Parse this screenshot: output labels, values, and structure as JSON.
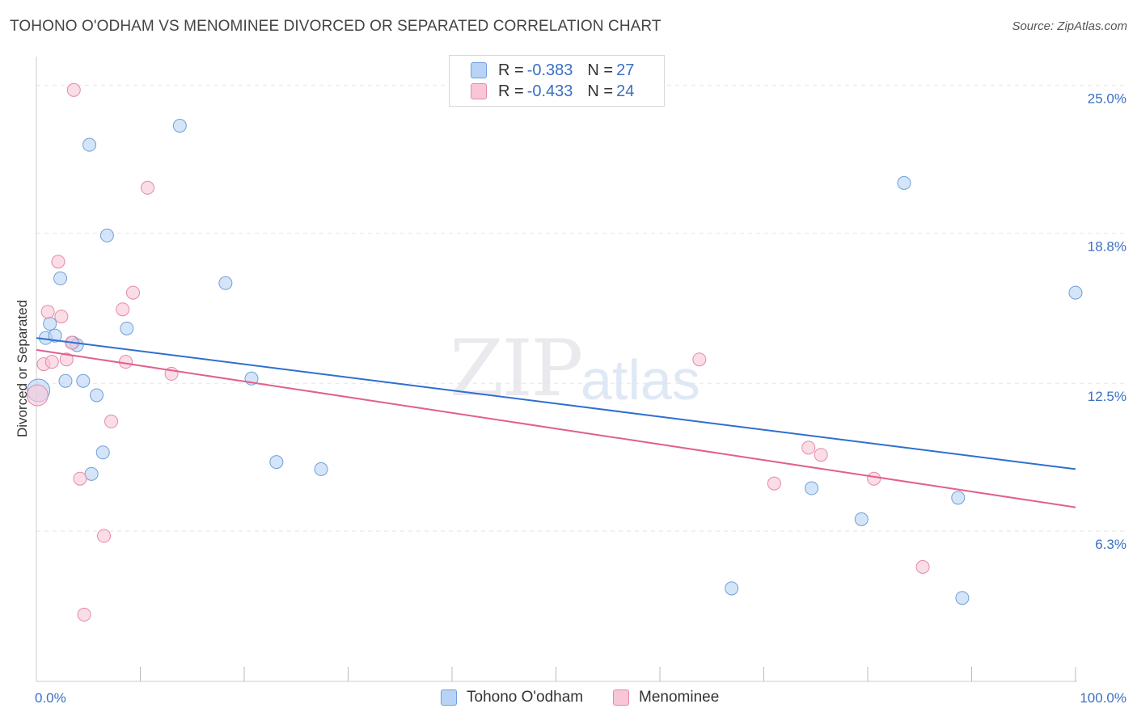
{
  "title": "TOHONO O'ODHAM VS MENOMINEE DIVORCED OR SEPARATED CORRELATION CHART",
  "source": "Source: ZipAtlas.com",
  "watermark": {
    "zip": "ZIP",
    "atlas": "atlas"
  },
  "legend": {
    "series1": {
      "r_label": "R =",
      "r_value": "-0.383",
      "n_label": "N =",
      "n_value": "27"
    },
    "series2": {
      "r_label": "R =",
      "r_value": "-0.433",
      "n_label": "N =",
      "n_value": "24"
    }
  },
  "bottom_legend": {
    "series1": "Tohono O'odham",
    "series2": "Menominee"
  },
  "colors": {
    "blue_fill": "#b8d3f5",
    "blue_stroke": "#6f9fd8",
    "blue_line": "#2f6fcf",
    "pink_fill": "#f9c6d6",
    "pink_stroke": "#e38aa8",
    "pink_line": "#e0608f",
    "tick_label": "#3a6fc4",
    "grid": "#e5e5e5"
  },
  "chart_data": {
    "type": "scatter",
    "title": "TOHONO O'ODHAM VS MENOMINEE DIVORCED OR SEPARATED CORRELATION CHART",
    "xlabel": "",
    "ylabel": "Divorced or Separated",
    "xlim": [
      0,
      100
    ],
    "ylim": [
      0,
      26.2
    ],
    "x_tick_labels": [
      "0.0%",
      "100.0%"
    ],
    "y_ticks": [
      6.3,
      12.5,
      18.8,
      25.0
    ],
    "y_tick_labels": [
      "6.3%",
      "12.5%",
      "18.8%",
      "25.0%"
    ],
    "grid": true,
    "legend_position": "top-center",
    "series": [
      {
        "name": "Tohono O'odham",
        "color": "#b8d3f5",
        "points": [
          [
            0.2,
            12.2
          ],
          [
            0.9,
            14.4
          ],
          [
            1.3,
            15.0
          ],
          [
            1.8,
            14.5
          ],
          [
            2.3,
            16.9
          ],
          [
            2.8,
            12.6
          ],
          [
            3.5,
            14.2
          ],
          [
            3.9,
            14.1
          ],
          [
            4.5,
            12.6
          ],
          [
            5.1,
            22.5
          ],
          [
            5.3,
            8.7
          ],
          [
            5.8,
            12.0
          ],
          [
            6.4,
            9.6
          ],
          [
            6.8,
            18.7
          ],
          [
            8.7,
            14.8
          ],
          [
            13.8,
            23.3
          ],
          [
            18.2,
            16.7
          ],
          [
            20.7,
            12.7
          ],
          [
            23.1,
            9.2
          ],
          [
            27.4,
            8.9
          ],
          [
            66.9,
            3.9
          ],
          [
            74.6,
            8.1
          ],
          [
            79.4,
            6.8
          ],
          [
            83.5,
            20.9
          ],
          [
            88.7,
            7.7
          ],
          [
            89.1,
            3.5
          ],
          [
            100.0,
            16.3
          ]
        ]
      },
      {
        "name": "Menominee",
        "color": "#f9c6d6",
        "points": [
          [
            0.1,
            12.0
          ],
          [
            0.7,
            13.3
          ],
          [
            1.1,
            15.5
          ],
          [
            1.5,
            13.4
          ],
          [
            2.1,
            17.6
          ],
          [
            2.4,
            15.3
          ],
          [
            2.9,
            13.5
          ],
          [
            3.4,
            14.2
          ],
          [
            3.6,
            24.8
          ],
          [
            4.2,
            8.5
          ],
          [
            4.6,
            2.8
          ],
          [
            6.5,
            6.1
          ],
          [
            7.2,
            10.9
          ],
          [
            8.3,
            15.6
          ],
          [
            8.6,
            13.4
          ],
          [
            9.3,
            16.3
          ],
          [
            10.7,
            20.7
          ],
          [
            13.0,
            12.9
          ],
          [
            63.8,
            13.5
          ],
          [
            71.0,
            8.3
          ],
          [
            74.3,
            9.8
          ],
          [
            75.5,
            9.5
          ],
          [
            80.6,
            8.5
          ],
          [
            85.3,
            4.8
          ]
        ]
      }
    ],
    "trend_lines": [
      {
        "name": "Tohono O'odham",
        "y_at_0": 14.4,
        "y_at_100": 8.9
      },
      {
        "name": "Menominee",
        "y_at_0": 13.9,
        "y_at_100": 7.3
      }
    ]
  }
}
